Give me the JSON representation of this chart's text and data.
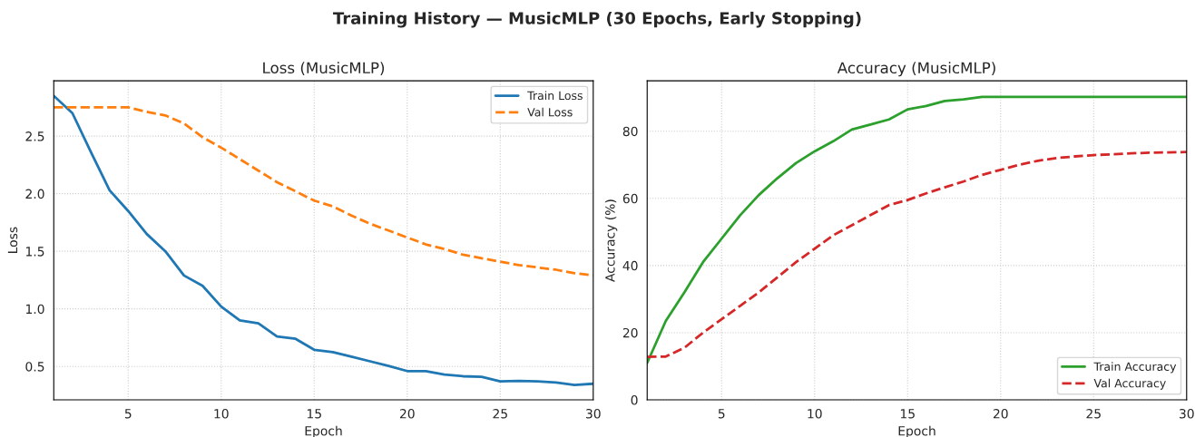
{
  "chart_data": [
    {
      "type": "line",
      "annotations": [
        "Training History — MusicMLP (30 Epochs, Early Stopping)"
      ],
      "title": "Loss (MusicMLP)",
      "xlabel": "Epoch",
      "ylabel": "Loss",
      "x": [
        1,
        2,
        3,
        4,
        5,
        6,
        7,
        8,
        9,
        10,
        11,
        12,
        13,
        14,
        15,
        16,
        17,
        18,
        19,
        20,
        21,
        22,
        23,
        24,
        25,
        26,
        27,
        28,
        29,
        30
      ],
      "series": [
        {
          "name": "Train Loss",
          "color": "#1f77b4",
          "line_style": "solid",
          "values": [
            2.85,
            2.7,
            2.36,
            2.03,
            1.85,
            1.65,
            1.5,
            1.29,
            1.2,
            1.02,
            0.9,
            0.875,
            0.76,
            0.74,
            0.645,
            0.625,
            0.585,
            0.545,
            0.505,
            0.46,
            0.46,
            0.43,
            0.415,
            0.41,
            0.37,
            0.375,
            0.37,
            0.36,
            0.34,
            0.35
          ]
        },
        {
          "name": "Val Loss",
          "color": "#ff7f0e",
          "line_style": "dashed",
          "values": [
            2.75,
            2.75,
            2.75,
            2.75,
            2.75,
            2.71,
            2.68,
            2.61,
            2.49,
            2.4,
            2.3,
            2.2,
            2.1,
            2.02,
            1.94,
            1.89,
            1.81,
            1.74,
            1.68,
            1.62,
            1.56,
            1.52,
            1.47,
            1.44,
            1.41,
            1.38,
            1.36,
            1.34,
            1.31,
            1.29
          ]
        }
      ],
      "xlim": [
        1,
        30
      ],
      "xticks": [
        5,
        10,
        15,
        20,
        25,
        30
      ],
      "ylim": [
        0.21,
        2.98
      ],
      "yticks": [
        0.5,
        {
          "value": 1,
          "label": "1.0"
        },
        1.5,
        {
          "value": 2,
          "label": "2.0"
        },
        2.5
      ],
      "grid": true,
      "legend": "top right"
    },
    {
      "type": "line",
      "title": "Accuracy (MusicMLP)",
      "xlabel": "Epoch",
      "ylabel": "Accuracy (%)",
      "x": [
        1,
        2,
        3,
        4,
        5,
        6,
        7,
        8,
        9,
        10,
        11,
        12,
        13,
        14,
        15,
        16,
        17,
        18,
        19,
        20,
        21,
        22,
        23,
        24,
        25,
        26,
        27,
        28,
        29,
        30
      ],
      "series": [
        {
          "name": "Train Accuracy",
          "color": "#2ca02c",
          "line_style": "solid",
          "values": [
            11,
            23.5,
            32,
            41,
            48,
            55,
            61,
            66,
            70.5,
            74,
            77,
            80.5,
            82,
            83.5,
            86.5,
            87.5,
            89,
            89.5,
            90.2,
            90.2,
            90.2,
            90.2,
            90.2,
            90.2,
            90.2,
            90.2,
            90.2,
            90.2,
            90.2,
            90.2
          ]
        },
        {
          "name": "Val Accuracy",
          "color": "#d62728",
          "line_style": "dashed",
          "values": [
            12.8,
            12.9,
            15.5,
            20,
            24,
            28,
            32,
            36.5,
            41,
            45,
            49,
            52,
            55,
            58,
            59.5,
            61.5,
            63.3,
            65,
            67,
            68.5,
            70,
            71.2,
            72,
            72.5,
            72.9,
            73.1,
            73.4,
            73.6,
            73.7,
            73.8
          ]
        }
      ],
      "xlim": [
        1,
        30
      ],
      "xticks": [
        5,
        10,
        15,
        20,
        25,
        30
      ],
      "ylim": [
        0,
        95
      ],
      "yticks": [
        0,
        20,
        40,
        60,
        80
      ],
      "grid": true,
      "legend": "bottom right"
    }
  ]
}
